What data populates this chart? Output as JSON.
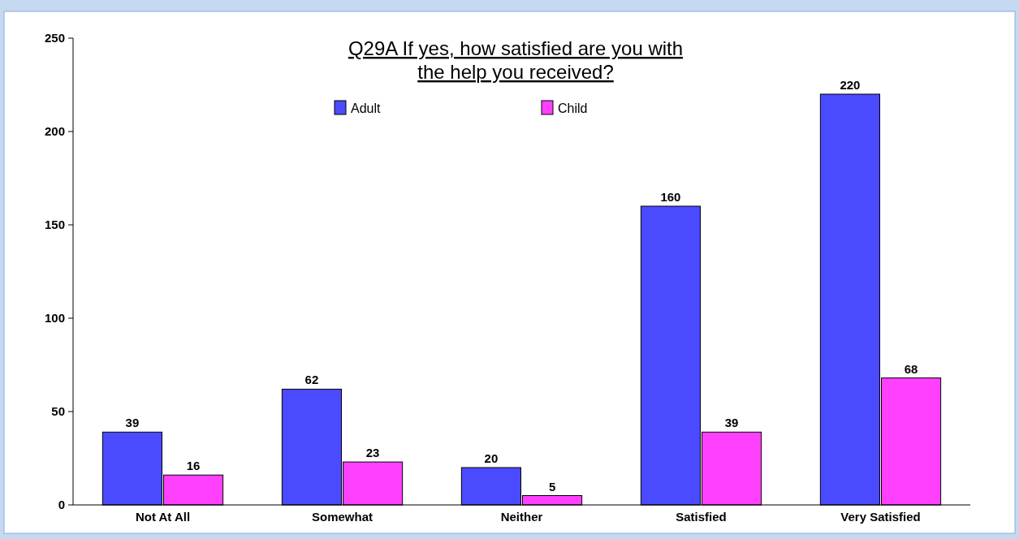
{
  "chart_data": {
    "type": "bar",
    "title": "Q29A If yes, how satisfied are you with\nthe help you received?",
    "categories": [
      "Not At All",
      "Somewhat",
      "Neither",
      "Satisfied",
      "Very Satisfied"
    ],
    "series": [
      {
        "name": "Adult",
        "color": "#4a4aff",
        "values": [
          39,
          62,
          20,
          160,
          220
        ]
      },
      {
        "name": "Child",
        "color": "#ff40ff",
        "values": [
          16,
          23,
          5,
          39,
          68
        ]
      }
    ],
    "ylim": [
      0,
      250
    ],
    "yticks": [
      0,
      50,
      100,
      150,
      200,
      250
    ],
    "grid": false,
    "legend": "top",
    "data_labels": true
  }
}
